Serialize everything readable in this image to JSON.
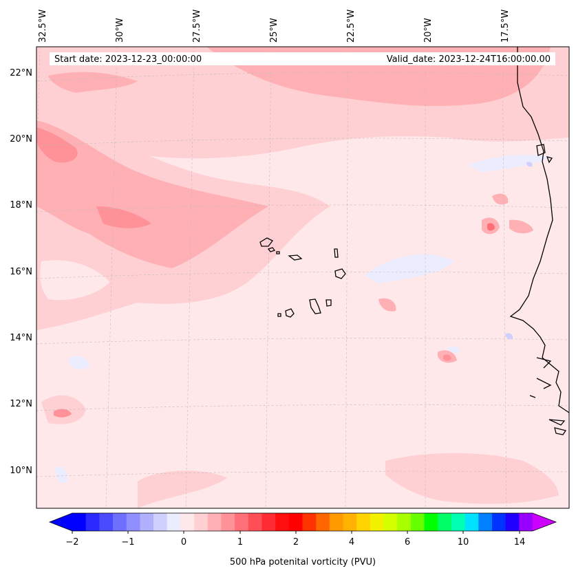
{
  "map": {
    "start_date_label": "Start date: 2023-12-23_00:00:00",
    "valid_date_label": "Valid_date: 2023-12-24T16:00:00.00",
    "lon_labels": [
      "32.5°W",
      "30°W",
      "27.5°W",
      "25°W",
      "22.5°W",
      "20°W",
      "17.5°W"
    ],
    "lat_labels": [
      "22°N",
      "20°N",
      "18°N",
      "16°N",
      "14°N",
      "12°N",
      "10°N"
    ],
    "background_color": "#ffe8ea",
    "coastline_color": "#000000"
  },
  "colorbar": {
    "title": "500 hPa potenital vorticity (PVU)",
    "tick_labels": [
      "−2",
      "−1",
      "0",
      "1",
      "2",
      "4",
      "6",
      "10",
      "14"
    ],
    "colors": [
      "#0000ff",
      "#2a2aff",
      "#4a4aff",
      "#6f6fff",
      "#8f8fff",
      "#b0b0ff",
      "#d0d0ff",
      "#ececff",
      "#ffe8ea",
      "#ffd0d3",
      "#ffb0b5",
      "#ff9198",
      "#ff6f77",
      "#ff4e56",
      "#ff2d33",
      "#ff0f0f",
      "#ff0000",
      "#ff3300",
      "#ff6600",
      "#ff9900",
      "#ffb300",
      "#ffd400",
      "#f2f200",
      "#d4ff00",
      "#a8ff00",
      "#66ff00",
      "#00ff00",
      "#00ff66",
      "#00ffb3",
      "#00e0ff",
      "#0080ff",
      "#0033ff",
      "#2200ff",
      "#9900ff"
    ],
    "min_extend_color": "#0000ff",
    "max_extend_color": "#cc00ff"
  }
}
